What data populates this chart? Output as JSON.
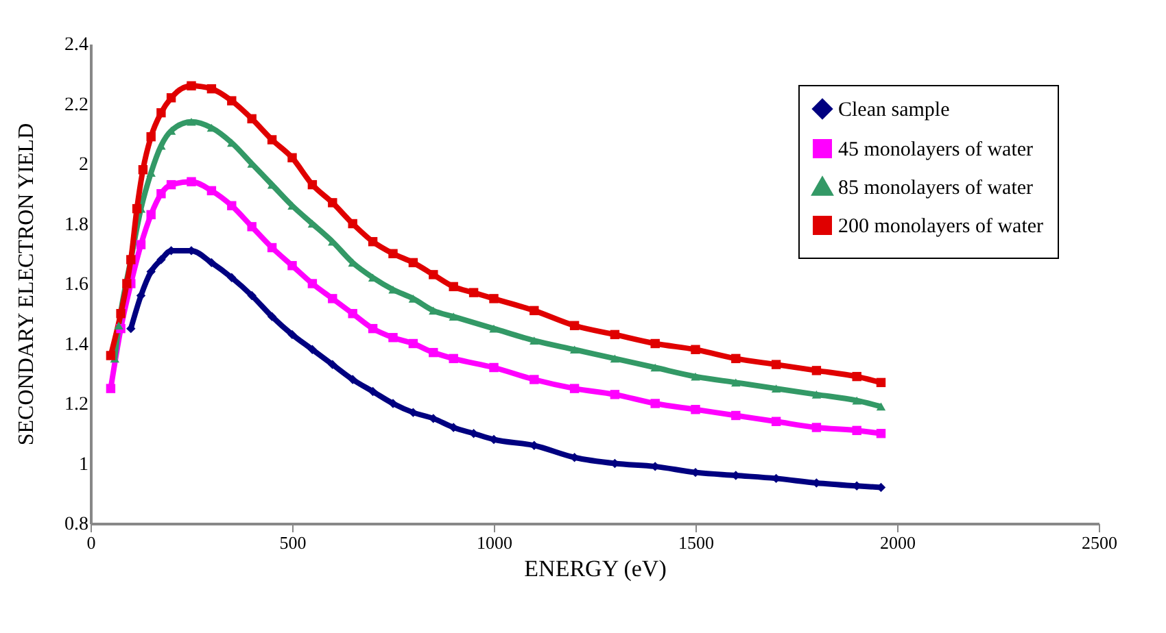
{
  "chart_data": {
    "type": "line",
    "xlabel": "ENERGY (eV)",
    "ylabel": "SECONDARY ELECTRON YIELD",
    "xlim": [
      0,
      2500
    ],
    "xticks": [
      0,
      500,
      1000,
      1500,
      2000,
      2500
    ],
    "ylim": [
      0.8,
      2.4
    ],
    "yticks": [
      0.8,
      1,
      1.2,
      1.4,
      1.6,
      1.8,
      2,
      2.2,
      2.4
    ],
    "grid": false,
    "legend": "top right",
    "line_style": "solid",
    "series": [
      {
        "name": "Clean sample",
        "color": "#000080",
        "marker": "diamond",
        "x": [
          100,
          125,
          150,
          175,
          200,
          250,
          300,
          350,
          400,
          450,
          500,
          550,
          600,
          650,
          700,
          750,
          800,
          850,
          900,
          950,
          1000,
          1100,
          1200,
          1300,
          1400,
          1500,
          1600,
          1700,
          1800,
          1900,
          1960
        ],
        "values": [
          1.45,
          1.56,
          1.64,
          1.68,
          1.71,
          1.71,
          1.67,
          1.62,
          1.56,
          1.49,
          1.43,
          1.38,
          1.33,
          1.28,
          1.24,
          1.2,
          1.17,
          1.15,
          1.12,
          1.1,
          1.08,
          1.06,
          1.02,
          1.0,
          0.99,
          0.97,
          0.96,
          0.95,
          0.935,
          0.925,
          0.92
        ]
      },
      {
        "name": "45 monolayers of water",
        "color": "#ff00ff",
        "marker": "square",
        "x": [
          50,
          75,
          100,
          125,
          150,
          175,
          200,
          250,
          300,
          350,
          400,
          450,
          500,
          550,
          600,
          650,
          700,
          750,
          800,
          850,
          900,
          1000,
          1100,
          1200,
          1300,
          1400,
          1500,
          1600,
          1700,
          1800,
          1900,
          1960
        ],
        "values": [
          1.25,
          1.45,
          1.6,
          1.73,
          1.83,
          1.9,
          1.93,
          1.94,
          1.91,
          1.86,
          1.79,
          1.72,
          1.66,
          1.6,
          1.55,
          1.5,
          1.45,
          1.42,
          1.4,
          1.37,
          1.35,
          1.32,
          1.28,
          1.25,
          1.23,
          1.2,
          1.18,
          1.16,
          1.14,
          1.12,
          1.11,
          1.1
        ]
      },
      {
        "name": "85 monolayers of water",
        "color": "#339966",
        "marker": "triangle",
        "x": [
          60,
          70,
          100,
          125,
          150,
          175,
          200,
          250,
          300,
          350,
          400,
          450,
          500,
          550,
          600,
          650,
          700,
          750,
          800,
          850,
          900,
          1000,
          1100,
          1200,
          1300,
          1400,
          1500,
          1600,
          1700,
          1800,
          1900,
          1960
        ],
        "values": [
          1.35,
          1.46,
          1.68,
          1.85,
          1.97,
          2.06,
          2.11,
          2.14,
          2.12,
          2.07,
          2.0,
          1.93,
          1.86,
          1.8,
          1.74,
          1.67,
          1.62,
          1.58,
          1.55,
          1.51,
          1.49,
          1.45,
          1.41,
          1.38,
          1.35,
          1.32,
          1.29,
          1.27,
          1.25,
          1.23,
          1.21,
          1.19
        ]
      },
      {
        "name": "200 monolayers of water",
        "color": "#e00000",
        "marker": "square",
        "x": [
          50,
          75,
          90,
          100,
          115,
          130,
          150,
          175,
          200,
          250,
          300,
          350,
          400,
          450,
          500,
          550,
          600,
          650,
          700,
          750,
          800,
          850,
          900,
          950,
          1000,
          1100,
          1200,
          1300,
          1400,
          1500,
          1600,
          1700,
          1800,
          1900,
          1960
        ],
        "values": [
          1.36,
          1.5,
          1.6,
          1.68,
          1.85,
          1.98,
          2.09,
          2.17,
          2.22,
          2.26,
          2.25,
          2.21,
          2.15,
          2.08,
          2.02,
          1.93,
          1.87,
          1.8,
          1.74,
          1.7,
          1.67,
          1.63,
          1.59,
          1.57,
          1.55,
          1.51,
          1.46,
          1.43,
          1.4,
          1.38,
          1.35,
          1.33,
          1.31,
          1.29,
          1.27
        ]
      }
    ]
  }
}
